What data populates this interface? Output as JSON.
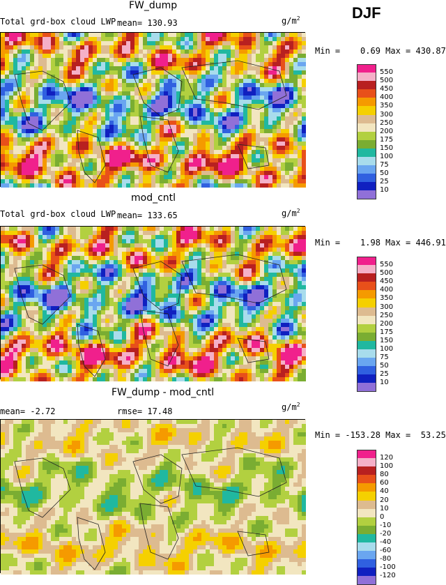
{
  "season": "DJF",
  "units": "g/m",
  "units_sup": "2",
  "panels": [
    {
      "title": "FW_dump",
      "var_label": "Total grd-box cloud LWP",
      "stat_text": "mean= 130.93",
      "min_max": "Min =    0.69 Max = 430.87",
      "legend": [
        "550",
        "500",
        "450",
        "400",
        "350",
        "300",
        "250",
        "200",
        "175",
        "150",
        "100",
        "75",
        "50",
        "25",
        "10"
      ],
      "colors": [
        "#f0208c",
        "#f5b0c8",
        "#b82020",
        "#e8501a",
        "#f59a00",
        "#f5d000",
        "#ddbb90",
        "#f2e6c0",
        "#b2d040",
        "#7aad32",
        "#20b8a0",
        "#a8dcec",
        "#6aa6f0",
        "#3060e0",
        "#1020c0",
        "#9070d8"
      ]
    },
    {
      "title": "mod_cntl",
      "var_label": "Total grd-box cloud LWP",
      "stat_text": "mean= 133.65",
      "min_max": "Min =    1.98 Max = 446.91",
      "legend": [
        "550",
        "500",
        "450",
        "400",
        "350",
        "300",
        "250",
        "200",
        "175",
        "150",
        "100",
        "75",
        "50",
        "25",
        "10"
      ],
      "colors": [
        "#f0208c",
        "#f5b0c8",
        "#b82020",
        "#e8501a",
        "#f59a00",
        "#f5d000",
        "#ddbb90",
        "#f2e6c0",
        "#b2d040",
        "#7aad32",
        "#20b8a0",
        "#a8dcec",
        "#6aa6f0",
        "#3060e0",
        "#1020c0",
        "#9070d8"
      ]
    },
    {
      "title": "FW_dump - mod_cntl",
      "mean_text": "mean=   -2.72",
      "rmse_text": "rmse=   17.48",
      "min_max": "Min = -153.28 Max =  53.25",
      "legend": [
        "120",
        "100",
        "80",
        "60",
        "40",
        "20",
        "10",
        "0",
        "-10",
        "-20",
        "-40",
        "-60",
        "-80",
        "-100",
        "-120"
      ],
      "colors": [
        "#f0208c",
        "#f5b0c8",
        "#b82020",
        "#e8501a",
        "#f59a00",
        "#f5d000",
        "#ddbb90",
        "#f2e6c0",
        "#b2d040",
        "#7aad32",
        "#20b8a0",
        "#a8dcec",
        "#6aa6f0",
        "#3060e0",
        "#1020c0",
        "#9070d8"
      ]
    }
  ]
}
